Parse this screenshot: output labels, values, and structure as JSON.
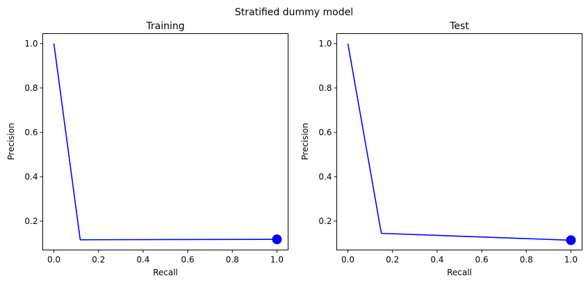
{
  "figure": {
    "title": "Stratified dummy model"
  },
  "chart_data": [
    {
      "type": "line",
      "title": "Training",
      "xlabel": "Recall",
      "ylabel": "Precision",
      "xlim": [
        -0.05,
        1.05
      ],
      "ylim": [
        0.07,
        1.045
      ],
      "xticks": [
        "0.0",
        "0.2",
        "0.4",
        "0.6",
        "0.8",
        "1.0"
      ],
      "yticks": [
        "0.2",
        "0.4",
        "0.6",
        "0.8",
        "1.0"
      ],
      "grid": false,
      "series": [
        {
          "color": "#0000ff",
          "x": [
            0.0,
            0.118,
            1.0
          ],
          "y": [
            1.0,
            0.116,
            0.118
          ]
        }
      ],
      "marker": {
        "x": 1.0,
        "y": 0.118,
        "color": "#0000ff"
      }
    },
    {
      "type": "line",
      "title": "Test",
      "xlabel": "Recall",
      "ylabel": "Precision",
      "xlim": [
        -0.05,
        1.05
      ],
      "ylim": [
        0.07,
        1.045
      ],
      "xticks": [
        "0.0",
        "0.2",
        "0.4",
        "0.6",
        "0.8",
        "1.0"
      ],
      "yticks": [
        "0.2",
        "0.4",
        "0.6",
        "0.8",
        "1.0"
      ],
      "grid": false,
      "series": [
        {
          "color": "#0000ff",
          "x": [
            0.0,
            0.15,
            1.0
          ],
          "y": [
            1.0,
            0.145,
            0.114
          ]
        }
      ],
      "marker": {
        "x": 1.0,
        "y": 0.114,
        "color": "#0000ff"
      }
    }
  ]
}
